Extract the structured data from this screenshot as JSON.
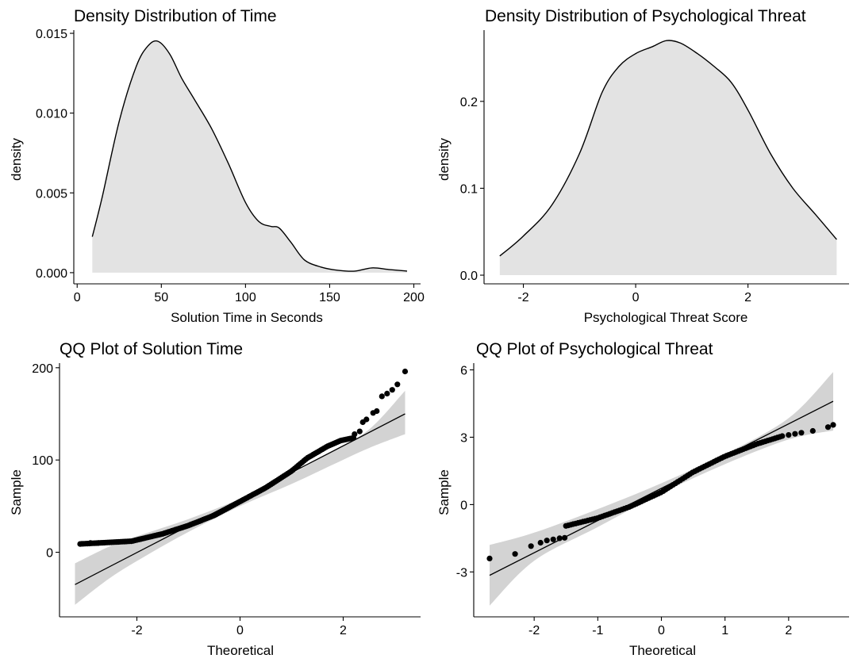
{
  "chart_data": [
    {
      "type": "area",
      "title": "Density Distribution of Time",
      "xlabel": "Solution Time in Seconds",
      "ylabel": "density",
      "xlim": [
        -2,
        204
      ],
      "ylim": [
        -0.0007,
        0.0152
      ],
      "xticks": [
        0,
        50,
        100,
        150,
        200
      ],
      "yticks": [
        0.0,
        0.005,
        0.01,
        0.015
      ],
      "ytick_labels": [
        "0.000",
        "0.005",
        "0.010",
        "0.015"
      ],
      "x": [
        9,
        15,
        25,
        35,
        42,
        48,
        55,
        62,
        70,
        80,
        90,
        100,
        108,
        115,
        120,
        127,
        135,
        145,
        155,
        165,
        175,
        185,
        196
      ],
      "y": [
        0.00225,
        0.0048,
        0.0095,
        0.0129,
        0.0142,
        0.0145,
        0.0137,
        0.0122,
        0.0108,
        0.009,
        0.0068,
        0.0044,
        0.0032,
        0.0029,
        0.0028,
        0.0019,
        0.0008,
        0.00035,
        0.00015,
        0.0001,
        0.0003,
        0.0002,
        0.0001
      ]
    },
    {
      "type": "area",
      "title": "Density Distribution of Psychological Threat",
      "xlabel": "Psychological Threat Score",
      "ylabel": "density",
      "xlim": [
        -2.7,
        3.8
      ],
      "ylim": [
        -0.01,
        0.282
      ],
      "xticks": [
        -2,
        0,
        2
      ],
      "yticks": [
        0.0,
        0.1,
        0.2
      ],
      "ytick_labels": [
        "0.0",
        "0.1",
        "0.2"
      ],
      "x": [
        -2.42,
        -2.0,
        -1.5,
        -1.0,
        -0.6,
        -0.3,
        0.0,
        0.3,
        0.55,
        0.8,
        1.1,
        1.4,
        1.7,
        2.0,
        2.4,
        2.8,
        3.2,
        3.58
      ],
      "y": [
        0.022,
        0.045,
        0.08,
        0.14,
        0.21,
        0.24,
        0.255,
        0.263,
        0.27,
        0.267,
        0.255,
        0.24,
        0.222,
        0.19,
        0.14,
        0.1,
        0.07,
        0.041
      ]
    },
    {
      "type": "scatter",
      "title": "QQ Plot of Solution Time",
      "xlabel": "Theoretical",
      "ylabel": "Sample",
      "xlim": [
        -3.5,
        3.5
      ],
      "ylim": [
        -70,
        205
      ],
      "xticks": [
        -2,
        0,
        2
      ],
      "yticks": [
        0,
        100,
        200
      ],
      "line": [
        [
          -3.2,
          -35
        ],
        [
          3.2,
          150
        ]
      ],
      "band_upper": [
        [
          -3.2,
          -12
        ],
        [
          -2.5,
          7
        ],
        [
          -1.8,
          21
        ],
        [
          -1.0,
          36
        ],
        [
          0.0,
          58
        ],
        [
          1.0,
          85
        ],
        [
          1.8,
          110
        ],
        [
          2.5,
          133
        ],
        [
          3.2,
          175
        ]
      ],
      "band_lower": [
        [
          -3.2,
          -57
        ],
        [
          -2.5,
          -27
        ],
        [
          -1.8,
          -3
        ],
        [
          -1.0,
          22
        ],
        [
          0.0,
          50
        ],
        [
          1.0,
          74
        ],
        [
          1.8,
          95
        ],
        [
          2.5,
          113
        ],
        [
          3.2,
          128
        ]
      ],
      "points": {
        "curve": [
          [
            -3.1,
            9
          ],
          [
            -2.1,
            12
          ],
          [
            -1.5,
            20
          ],
          [
            -1.0,
            29
          ],
          [
            -0.5,
            40
          ],
          [
            0.0,
            55
          ],
          [
            0.5,
            70
          ],
          [
            1.0,
            88
          ],
          [
            1.3,
            102
          ],
          [
            1.7,
            115
          ],
          [
            1.95,
            121
          ],
          [
            2.2,
            124
          ]
        ],
        "n": 150,
        "extra": [
          [
            -2.9,
            10
          ],
          [
            -2.75,
            10
          ],
          [
            2.22,
            128
          ],
          [
            2.32,
            131
          ],
          [
            2.38,
            141
          ],
          [
            2.45,
            144
          ],
          [
            2.58,
            151
          ],
          [
            2.65,
            153
          ],
          [
            2.75,
            169
          ],
          [
            2.85,
            172
          ],
          [
            2.95,
            176
          ],
          [
            3.05,
            182
          ],
          [
            3.2,
            196
          ]
        ]
      }
    },
    {
      "type": "scatter",
      "title": "QQ Plot of Psychological Threat",
      "xlabel": "Theoretical",
      "ylabel": "Sample",
      "xlim": [
        -2.95,
        2.95
      ],
      "ylim": [
        -5.0,
        6.3
      ],
      "xticks": [
        -2,
        -1,
        0,
        1,
        2
      ],
      "yticks": [
        -3,
        0,
        3,
        6
      ],
      "line": [
        [
          -2.7,
          -3.15
        ],
        [
          2.7,
          4.6
        ]
      ],
      "band_upper": [
        [
          -2.7,
          -1.8
        ],
        [
          -2.0,
          -1.25
        ],
        [
          -1.0,
          -0.2
        ],
        [
          0.0,
          0.95
        ],
        [
          1.0,
          2.25
        ],
        [
          2.0,
          3.85
        ],
        [
          2.7,
          5.9
        ]
      ],
      "band_lower": [
        [
          -2.7,
          -4.5
        ],
        [
          -2.0,
          -2.5
        ],
        [
          -1.0,
          -1.0
        ],
        [
          0.0,
          0.5
        ],
        [
          1.0,
          1.8
        ],
        [
          2.0,
          2.9
        ],
        [
          2.7,
          3.3
        ]
      ],
      "points": {
        "curve": [
          [
            -1.5,
            -0.95
          ],
          [
            -1.0,
            -0.6
          ],
          [
            -0.5,
            -0.1
          ],
          [
            0.0,
            0.55
          ],
          [
            0.5,
            1.45
          ],
          [
            1.0,
            2.15
          ],
          [
            1.5,
            2.7
          ],
          [
            1.9,
            3.05
          ]
        ],
        "n": 90,
        "extra": [
          [
            -2.7,
            -2.4
          ],
          [
            -2.3,
            -2.2
          ],
          [
            -2.05,
            -1.85
          ],
          [
            -1.9,
            -1.7
          ],
          [
            -1.8,
            -1.6
          ],
          [
            -1.7,
            -1.55
          ],
          [
            -1.6,
            -1.5
          ],
          [
            -1.52,
            -1.48
          ],
          [
            2.0,
            3.1
          ],
          [
            2.1,
            3.15
          ],
          [
            2.2,
            3.2
          ],
          [
            2.38,
            3.28
          ],
          [
            2.62,
            3.45
          ],
          [
            2.7,
            3.55
          ]
        ]
      }
    }
  ]
}
